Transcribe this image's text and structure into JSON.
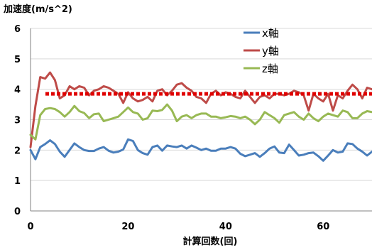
{
  "chart_data": {
    "type": "line",
    "ylabel": "加速度(m/s^2)",
    "xlabel": "計算回数(回)",
    "xlim": [
      0,
      70
    ],
    "ylim": [
      0,
      6
    ],
    "x_ticks": [
      0,
      20,
      40,
      60
    ],
    "y_ticks": [
      0,
      1,
      2,
      3,
      4,
      5,
      6
    ],
    "x_tick_labels": [
      "0",
      "20",
      "40",
      "60"
    ],
    "y_tick_labels": [
      "0",
      "1",
      "2",
      "3",
      "4",
      "5",
      "6"
    ],
    "grid": "horizontal",
    "legend_position": "top-right",
    "x": [
      0,
      1,
      2,
      3,
      4,
      5,
      6,
      7,
      8,
      9,
      10,
      11,
      12,
      13,
      14,
      15,
      16,
      17,
      18,
      19,
      20,
      21,
      22,
      23,
      24,
      25,
      26,
      27,
      28,
      29,
      30,
      31,
      32,
      33,
      34,
      35,
      36,
      37,
      38,
      39,
      40,
      41,
      42,
      43,
      44,
      45,
      46,
      47,
      48,
      49,
      50,
      51,
      52,
      53,
      54,
      55,
      56,
      57,
      58,
      59,
      60,
      61,
      62,
      63,
      64,
      65,
      66,
      67,
      68,
      69,
      70
    ],
    "series": [
      {
        "name": "x軸",
        "color": "#4a7ebb",
        "values": [
          2.0,
          1.7,
          2.1,
          2.2,
          2.32,
          2.2,
          1.95,
          1.78,
          2.0,
          2.22,
          2.1,
          2.0,
          1.97,
          1.97,
          2.05,
          2.1,
          1.98,
          1.92,
          1.95,
          2.02,
          2.35,
          2.3,
          2.0,
          1.9,
          1.85,
          2.1,
          2.15,
          1.98,
          2.15,
          2.12,
          2.1,
          2.15,
          2.05,
          2.15,
          2.08,
          2.0,
          2.05,
          1.98,
          1.98,
          2.05,
          2.05,
          2.1,
          2.05,
          1.88,
          1.8,
          1.85,
          1.9,
          1.78,
          1.9,
          2.05,
          2.12,
          1.92,
          1.9,
          2.18,
          2.0,
          1.82,
          1.85,
          1.9,
          1.92,
          1.8,
          1.65,
          1.82,
          2.0,
          1.92,
          1.95,
          2.22,
          2.2,
          2.05,
          1.95,
          1.82,
          1.95
        ]
      },
      {
        "name": "y軸",
        "color": "#be4b48",
        "values": [
          2.1,
          3.45,
          4.4,
          4.35,
          4.55,
          4.3,
          3.7,
          3.8,
          4.1,
          4.0,
          4.1,
          4.05,
          3.8,
          3.95,
          4.0,
          4.1,
          4.05,
          3.95,
          3.85,
          3.55,
          3.9,
          3.7,
          3.6,
          3.65,
          3.75,
          3.6,
          3.95,
          4.0,
          3.8,
          3.95,
          4.15,
          4.2,
          4.05,
          3.95,
          3.75,
          3.7,
          3.55,
          3.85,
          3.95,
          3.8,
          3.9,
          3.85,
          3.75,
          3.7,
          3.95,
          3.75,
          3.55,
          3.75,
          3.8,
          3.7,
          3.85,
          3.85,
          3.8,
          3.85,
          3.95,
          3.9,
          3.8,
          3.3,
          3.85,
          3.7,
          3.6,
          3.85,
          3.3,
          3.8,
          3.7,
          3.95,
          4.15,
          4.0,
          3.7,
          4.05,
          4.0
        ]
      },
      {
        "name": "z軸",
        "color": "#98b954",
        "values": [
          2.5,
          2.35,
          3.15,
          3.35,
          3.38,
          3.35,
          3.25,
          3.1,
          3.25,
          3.45,
          3.28,
          3.22,
          3.05,
          3.18,
          3.2,
          2.95,
          3.0,
          3.05,
          3.1,
          3.25,
          3.4,
          3.25,
          3.2,
          3.0,
          3.05,
          3.3,
          3.28,
          3.32,
          3.5,
          3.3,
          2.95,
          3.1,
          3.15,
          3.05,
          3.15,
          3.2,
          3.2,
          3.1,
          3.1,
          3.05,
          3.08,
          3.12,
          3.1,
          3.05,
          3.1,
          3.0,
          2.85,
          3.0,
          3.25,
          3.15,
          3.05,
          2.9,
          3.15,
          3.2,
          3.25,
          3.1,
          3.0,
          3.2,
          3.05,
          2.95,
          3.1,
          3.2,
          3.15,
          3.1,
          3.3,
          3.25,
          3.05,
          3.05,
          3.2,
          3.28,
          3.25
        ]
      }
    ],
    "reference_line": {
      "y": 3.85,
      "color": "#e00000",
      "style": "dotted"
    }
  }
}
